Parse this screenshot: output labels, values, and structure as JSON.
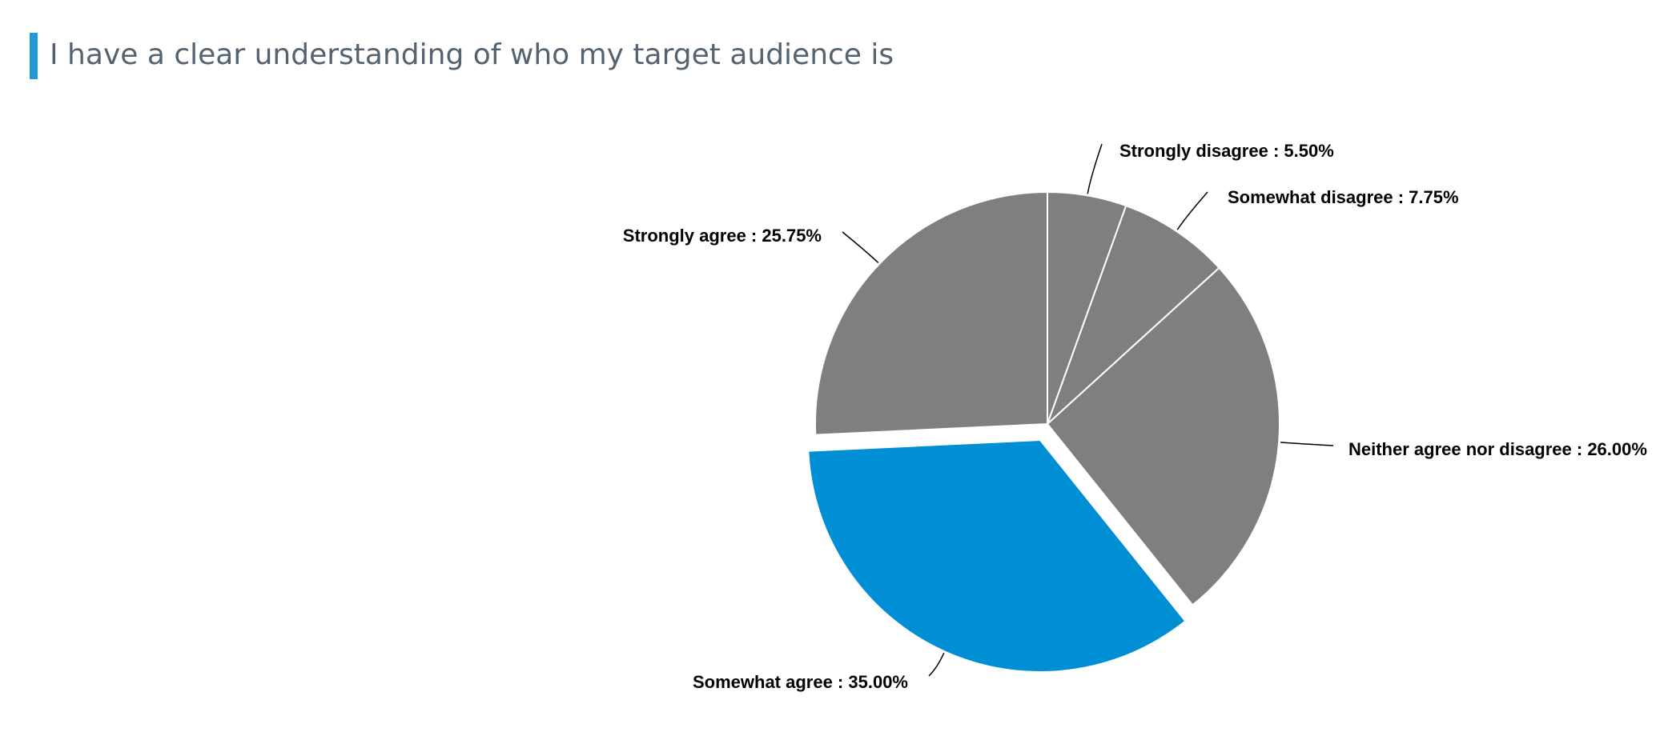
{
  "chart_data": {
    "type": "pie",
    "title": "I have a clear understanding of who my target audience is",
    "slices": [
      {
        "label": "Strongly disagree",
        "value": 5.5,
        "display": "Strongly disagree : 5.50%",
        "color": "#7f7f7f"
      },
      {
        "label": "Somewhat disagree",
        "value": 7.75,
        "display": "Somewhat disagree : 7.75%",
        "color": "#7f7f7f"
      },
      {
        "label": "Neither agree nor disagree",
        "value": 26.0,
        "display": "Neither agree nor disagree : 26.00%",
        "color": "#7f7f7f"
      },
      {
        "label": "Somewhat agree",
        "value": 35.0,
        "display": "Somewhat agree : 35.00%",
        "color": "#008fd5",
        "highlighted": true
      },
      {
        "label": "Strongly agree",
        "value": 25.75,
        "display": "Strongly agree : 25.75%",
        "color": "#7f7f7f"
      }
    ],
    "start_angle": "12 o'clock",
    "direction": "clockwise",
    "legend": "none",
    "labels": "outside with leader lines"
  },
  "colors": {
    "accent_bar": "#1f9ad6",
    "title_text": "#556270",
    "slice_default": "#7f7f7f",
    "slice_highlight": "#008fd5"
  }
}
